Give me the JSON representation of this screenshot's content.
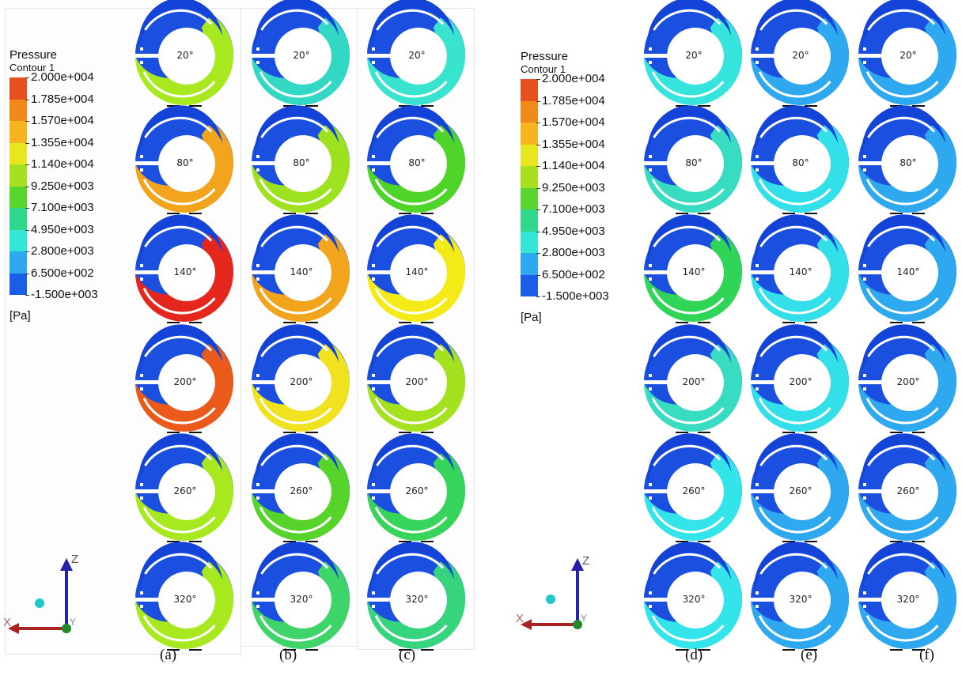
{
  "legend": {
    "title": "Pressure",
    "subtitle": "Contour 1",
    "unit": "[Pa]",
    "ticks": [
      "2.000e+004",
      "1.785e+004",
      "1.570e+004",
      "1.355e+004",
      "1.140e+004",
      "9.250e+003",
      "7.100e+003",
      "4.950e+003",
      "2.800e+003",
      "6.500e+002",
      "-1.500e+003"
    ],
    "colors": [
      "#e8501f",
      "#f28a19",
      "#f6b51f",
      "#e8e61f",
      "#a6e01f",
      "#58d62f",
      "#2fd88a",
      "#33e6d6",
      "#2ea8ee",
      "#1a5ee8"
    ]
  },
  "angle_labels": [
    "20°",
    "80°",
    "140°",
    "200°",
    "260°",
    "320°"
  ],
  "axis_labels": {
    "z": "Z",
    "x": "X",
    "y": "Y"
  },
  "columns": [
    {
      "caption": "(a)",
      "colors": [
        "#a8e81f",
        "#f2a41c",
        "#e4261c",
        "#ea5a1a",
        "#a8e81f",
        "#a8e81f"
      ]
    },
    {
      "caption": "(b)",
      "colors": [
        "#33d8c4",
        "#9ee21f",
        "#f2a41c",
        "#f0e21f",
        "#56d42c",
        "#3ed46a"
      ]
    },
    {
      "caption": "(c)",
      "colors": [
        "#38e4ce",
        "#4fd42a",
        "#f4ea18",
        "#a4e11f",
        "#36d45a",
        "#36d47e"
      ]
    },
    {
      "caption": "(d)",
      "colors": [
        "#36e4de",
        "#38dcc0",
        "#30d456",
        "#38dcc0",
        "#33e4ea",
        "#33e4ea"
      ]
    },
    {
      "caption": "(e)",
      "colors": [
        "#2ea8ee",
        "#33dfe9",
        "#33dfe9",
        "#33dfe9",
        "#2ea8ee",
        "#2ea8ee"
      ]
    },
    {
      "caption": "(f)",
      "colors": [
        "#2ea8ee",
        "#2ea8ee",
        "#2ea8ee",
        "#2ea8ee",
        "#2ea8ee",
        "#2ea8ee"
      ]
    }
  ],
  "ring_outer_color": "#1a4fe0",
  "ring_inner_color": "#1443d8"
}
